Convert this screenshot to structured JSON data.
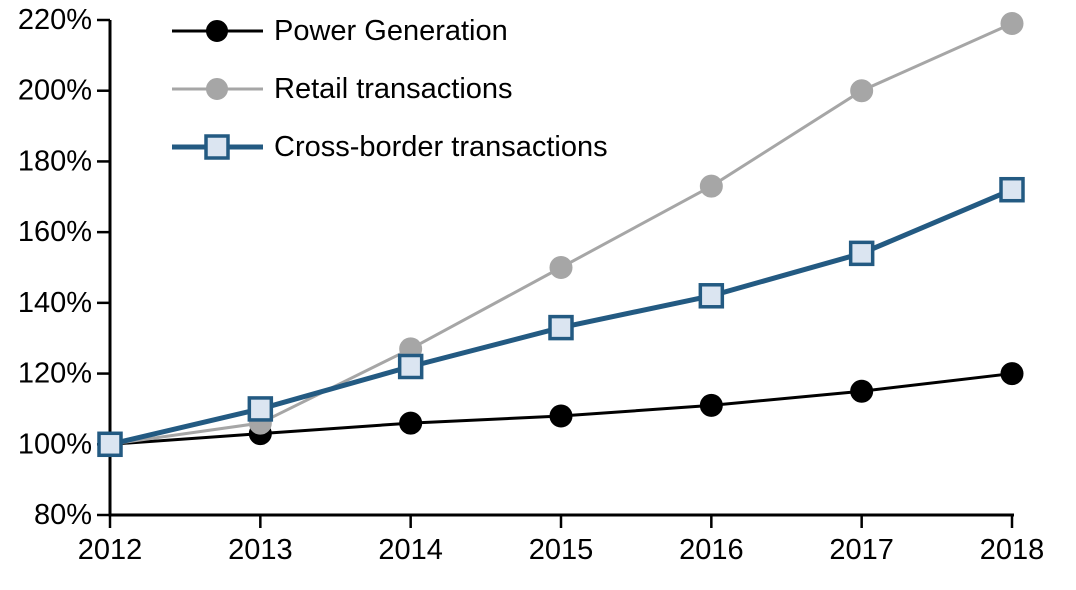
{
  "chart_data": {
    "type": "line",
    "title": "",
    "xlabel": "",
    "ylabel": "",
    "x_categories": [
      "2012",
      "2013",
      "2014",
      "2015",
      "2016",
      "2017",
      "2018"
    ],
    "series": [
      {
        "name": "Power Generation",
        "color": "#000000",
        "marker": "circle",
        "marker_fill": "#000000",
        "marker_stroke": "#000000",
        "line_width": 3,
        "values": [
          100,
          103,
          106,
          108,
          111,
          115,
          120
        ]
      },
      {
        "name": "Retail transactions",
        "color": "#a6a6a6",
        "marker": "circle",
        "marker_fill": "#a6a6a6",
        "marker_stroke": "#a6a6a6",
        "line_width": 3,
        "values": [
          100,
          106,
          127,
          150,
          173,
          200,
          219
        ]
      },
      {
        "name": "Cross-border transactions",
        "color": "#235a82",
        "marker": "square",
        "marker_fill": "#dbe5f1",
        "marker_stroke": "#235a82",
        "line_width": 5,
        "values": [
          100,
          110,
          122,
          133,
          142,
          154,
          172
        ]
      }
    ],
    "ylim": [
      80,
      220
    ],
    "ytick_step": 20,
    "ytick_labels": [
      "80%",
      "100%",
      "120%",
      "140%",
      "160%",
      "180%",
      "200%",
      "220%"
    ],
    "xtick_labels": [
      "2012",
      "2013",
      "2014",
      "2015",
      "2016",
      "2017",
      "2018"
    ],
    "unit": "%",
    "grid": false,
    "legend_position": "top-left",
    "axis_color": "#000000",
    "background": "#ffffff"
  }
}
